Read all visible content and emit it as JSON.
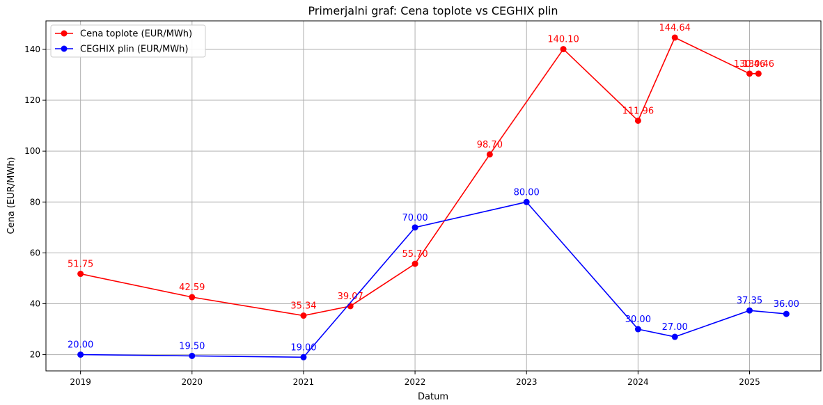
{
  "chart_data": {
    "type": "line",
    "title": "Primerjalni graf: Cena toplote vs CEGHIX plin",
    "xlabel": "Datum",
    "ylabel": "Cena (EUR/MWh)",
    "xlim": [
      2018.69,
      2025.64
    ],
    "ylim": [
      13.6,
      151.2
    ],
    "x_ticks": [
      2019,
      2020,
      2021,
      2022,
      2023,
      2024,
      2025
    ],
    "x_tick_labels": [
      "2019",
      "2020",
      "2021",
      "2022",
      "2023",
      "2024",
      "2025"
    ],
    "y_ticks": [
      20,
      40,
      60,
      80,
      100,
      120,
      140
    ],
    "y_tick_labels": [
      "20",
      "40",
      "60",
      "80",
      "100",
      "120",
      "140"
    ],
    "grid": true,
    "legend_position": "upper-left",
    "series": [
      {
        "name": "Cena toplote (EUR/MWh)",
        "color": "#ff0000",
        "x": [
          2019.0,
          2020.0,
          2021.0,
          2021.42,
          2022.0,
          2022.67,
          2023.33,
          2024.0,
          2024.33,
          2025.0,
          2025.08
        ],
        "values": [
          51.75,
          42.59,
          35.34,
          39.07,
          55.7,
          98.7,
          140.1,
          111.96,
          144.64,
          130.46,
          130.46
        ],
        "labels": [
          "51.75",
          "42.59",
          "35.34",
          "39.07",
          "55.70",
          "98.70",
          "140.10",
          "111.96",
          "144.64",
          "130.46",
          "130.46"
        ]
      },
      {
        "name": "CEGHIX plin (EUR/MWh)",
        "color": "#0000ff",
        "x": [
          2019.0,
          2020.0,
          2021.0,
          2022.0,
          2023.0,
          2024.0,
          2024.33,
          2025.0,
          2025.33
        ],
        "values": [
          20.0,
          19.5,
          19.0,
          70.0,
          80.0,
          30.0,
          27.0,
          37.35,
          36.0
        ],
        "labels": [
          "20.00",
          "19.50",
          "19.00",
          "70.00",
          "80.00",
          "30.00",
          "27.00",
          "37.35",
          "36.00"
        ]
      }
    ]
  }
}
